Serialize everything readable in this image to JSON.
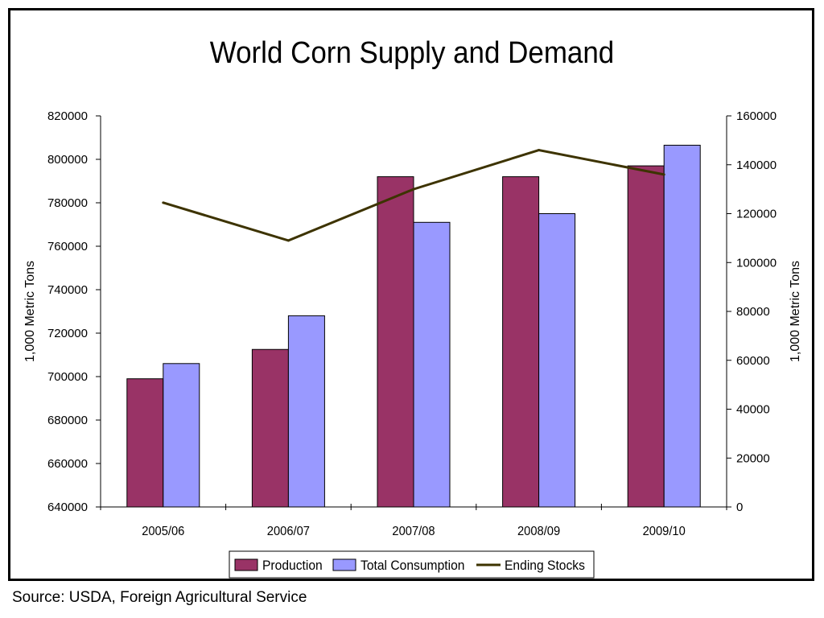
{
  "chart_data": {
    "type": "bar",
    "title": "World Corn Supply and Demand",
    "categories": [
      "2005/06",
      "2006/07",
      "2007/08",
      "2008/09",
      "2009/10"
    ],
    "series": [
      {
        "name": "Production",
        "kind": "bar",
        "axis": "left",
        "color": "#993366",
        "values": [
          699000,
          712500,
          792000,
          792000,
          797000
        ]
      },
      {
        "name": "Total Consumption",
        "kind": "bar",
        "axis": "left",
        "color": "#9999ff",
        "values": [
          706000,
          728000,
          771000,
          775000,
          806500
        ]
      },
      {
        "name": "Ending Stocks",
        "kind": "line",
        "axis": "right",
        "color": "#3d3300",
        "values": [
          124500,
          109000,
          130000,
          146000,
          136000
        ]
      }
    ],
    "ylabel": "1,000 Metric Tons",
    "ylim": [
      640000,
      820000
    ],
    "yticks": [
      "640000",
      "660000",
      "680000",
      "700000",
      "720000",
      "740000",
      "760000",
      "780000",
      "800000",
      "820000"
    ],
    "y2label": "1,000 Metric Tons",
    "y2lim": [
      0,
      160000
    ],
    "y2ticks": [
      "0",
      "20000",
      "40000",
      "60000",
      "80000",
      "100000",
      "120000",
      "140000",
      "160000"
    ],
    "grid": false,
    "legend_position": "bottom"
  },
  "source": "Source: USDA, Foreign Agricultural Service"
}
